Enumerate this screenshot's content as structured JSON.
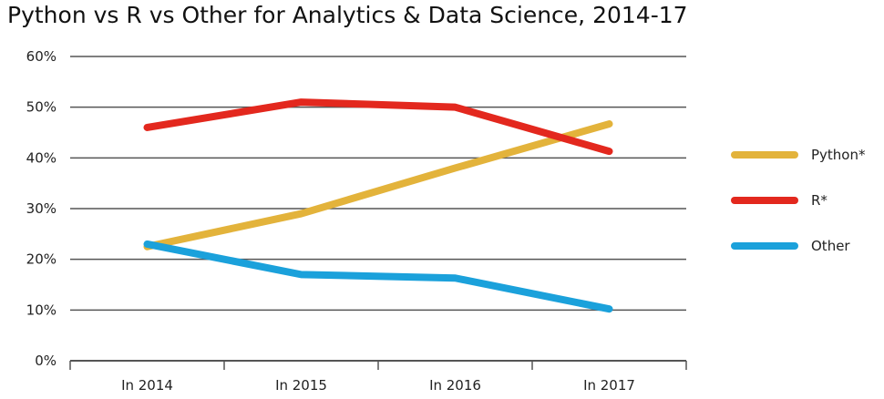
{
  "chart_data": {
    "type": "line",
    "title": "Python vs R vs Other for Analytics & Data Science, 2014-17",
    "xlabel": "",
    "ylabel": "",
    "categories": [
      "In 2014",
      "In 2015",
      "In 2016",
      "In 2017"
    ],
    "y_ticks": [
      "0%",
      "10%",
      "20%",
      "30%",
      "40%",
      "50%",
      "60%"
    ],
    "ylim": [
      0,
      60
    ],
    "grid": true,
    "legend_position": "right",
    "series": [
      {
        "name": "Python*",
        "color": "#e3b33b",
        "values": [
          22.5,
          29,
          38,
          46.7
        ]
      },
      {
        "name": "R*",
        "color": "#e3281e",
        "values": [
          46,
          51,
          50,
          41.3
        ]
      },
      {
        "name": "Other",
        "color": "#1ba1db",
        "values": [
          23,
          17,
          16.3,
          10.2
        ]
      }
    ]
  }
}
